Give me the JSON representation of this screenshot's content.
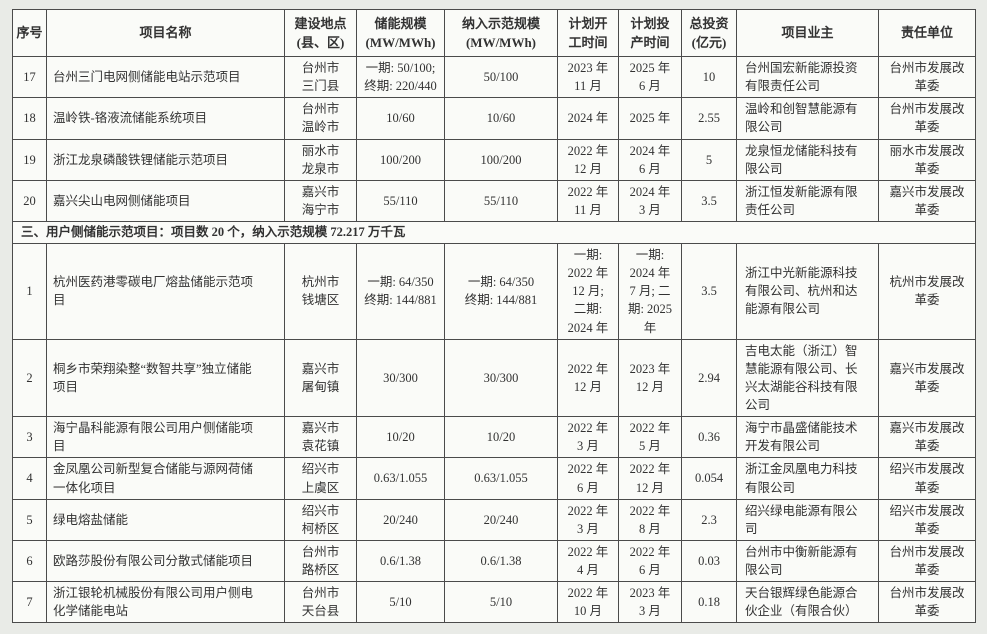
{
  "table": {
    "columns": [
      "序号",
      "项目名称",
      "建设地点\n(县、区)",
      "储能规模\n(MW/MWh)",
      "纳入示范规模\n(MW/MWh)",
      "计划开\n工时间",
      "计划投\n产时间",
      "总投资\n(亿元)",
      "项目业主",
      "责任单位"
    ],
    "sections": [
      {
        "title": null,
        "rows": [
          [
            "17",
            "台州三门电网侧储能电站示范项目",
            "台州市\n三门县",
            "一期: 50/100;\n终期: 220/440",
            "50/100",
            "2023 年\n11 月",
            "2025 年\n6 月",
            "10",
            "台州国宏新能源投资\n有限责任公司",
            "台州市发展改\n革委"
          ],
          [
            "18",
            "温岭铁-铬液流储能系统项目",
            "台州市\n温岭市",
            "10/60",
            "10/60",
            "2024 年",
            "2025 年",
            "2.55",
            "温岭和创智慧能源有\n限公司",
            "台州市发展改\n革委"
          ],
          [
            "19",
            "浙江龙泉磷酸铁锂储能示范项目",
            "丽水市\n龙泉市",
            "100/200",
            "100/200",
            "2022 年\n12 月",
            "2024 年\n6 月",
            "5",
            "龙泉恒龙储能科技有\n限公司",
            "丽水市发展改\n革委"
          ],
          [
            "20",
            "嘉兴尖山电网侧储能项目",
            "嘉兴市\n海宁市",
            "55/110",
            "55/110",
            "2022 年\n11 月",
            "2024 年\n3 月",
            "3.5",
            "浙江恒发新能源有限\n责任公司",
            "嘉兴市发展改\n革委"
          ]
        ]
      },
      {
        "title": "三、用户侧储能示范项目：项目数 20 个，纳入示范规模 72.217 万千瓦",
        "rows": [
          [
            "1",
            "杭州医药港零碳电厂熔盐储能示范项\n目",
            "杭州市\n钱塘区",
            "一期: 64/350\n终期: 144/881",
            "一期: 64/350\n终期: 144/881",
            "一期:\n2022 年\n12 月;\n二期:\n2024 年",
            "一期:\n2024 年\n7 月; 二\n期: 2025\n年",
            "3.5",
            "浙江中光新能源科技\n有限公司、杭州和达\n能源有限公司",
            "杭州市发展改\n革委"
          ],
          [
            "2",
            "桐乡市荣翔染整“数智共享”独立储能\n项目",
            "嘉兴市\n屠甸镇",
            "30/300",
            "30/300",
            "2022 年\n12 月",
            "2023 年\n12 月",
            "2.94",
            "吉电太能（浙江）智\n慧能源有限公司、长\n兴太湖能谷科技有限\n公司",
            "嘉兴市发展改\n革委"
          ],
          [
            "3",
            "海宁晶科能源有限公司用户侧储能项\n目",
            "嘉兴市\n袁花镇",
            "10/20",
            "10/20",
            "2022 年\n3 月",
            "2022 年\n5 月",
            "0.36",
            "海宁市晶盛储能技术\n开发有限公司",
            "嘉兴市发展改\n革委"
          ],
          [
            "4",
            "金凤凰公司新型复合储能与源网荷储\n一体化项目",
            "绍兴市\n上虞区",
            "0.63/1.055",
            "0.63/1.055",
            "2022 年\n6 月",
            "2022 年\n12 月",
            "0.054",
            "浙江金凤凰电力科技\n有限公司",
            "绍兴市发展改\n革委"
          ],
          [
            "5",
            "绿电熔盐储能",
            "绍兴市\n柯桥区",
            "20/240",
            "20/240",
            "2022 年\n3 月",
            "2022 年\n8 月",
            "2.3",
            "绍兴绿电能源有限公\n司",
            "绍兴市发展改\n革委"
          ],
          [
            "6",
            "欧路莎股份有限公司分散式储能项目",
            "台州市\n路桥区",
            "0.6/1.38",
            "0.6/1.38",
            "2022 年\n4 月",
            "2022 年\n6 月",
            "0.03",
            "台州市中衡新能源有\n限公司",
            "台州市发展改\n革委"
          ],
          [
            "7",
            "浙江银轮机械股份有限公司用户侧电\n化学储能电站",
            "台州市\n天台县",
            "5/10",
            "5/10",
            "2022 年\n10 月",
            "2023 年\n3 月",
            "0.18",
            "天台银辉绿色能源合\n伙企业（有限合伙）",
            "台州市发展改\n革委"
          ]
        ]
      }
    ]
  }
}
